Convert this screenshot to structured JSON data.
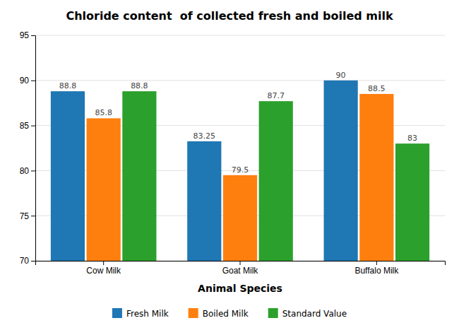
{
  "chart_data": {
    "type": "bar",
    "title": "Chloride content  of collected fresh and boiled milk",
    "xlabel": "Animal Species",
    "categories": [
      "Cow Milk",
      "Goat Milk",
      "Buffalo Milk"
    ],
    "series": [
      {
        "name": "Fresh Milk",
        "values": [
          88.8,
          83.25,
          90
        ]
      },
      {
        "name": "Boiled Milk",
        "values": [
          85.8,
          79.5,
          88.5
        ]
      },
      {
        "name": "Standard Value",
        "values": [
          88.8,
          87.7,
          83
        ]
      }
    ],
    "ylim": [
      70,
      95
    ],
    "yticks": [
      70,
      75,
      80,
      85,
      90,
      95
    ],
    "grid": true,
    "data_labels": true,
    "legend": "bottom"
  }
}
